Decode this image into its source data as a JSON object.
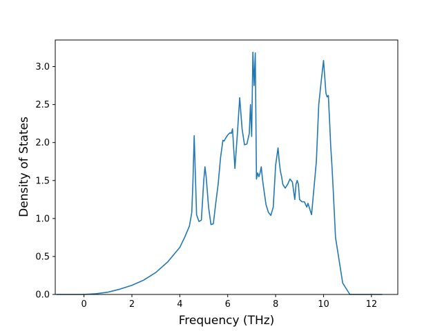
{
  "chart_data": {
    "type": "line",
    "title": "",
    "xlabel": "Frequency (THz)",
    "ylabel": "Density of States",
    "xlim": [
      -1.2,
      13.1
    ],
    "ylim": [
      0.0,
      3.35
    ],
    "grid": false,
    "xticks": [
      "0",
      "2",
      "4",
      "6",
      "8",
      "10",
      "12"
    ],
    "yticks": [
      "0.0",
      "0.5",
      "1.0",
      "1.5",
      "2.0",
      "2.5",
      "3.0"
    ],
    "line_color": "#1f77b4",
    "series": [
      {
        "x": [
          -1.15,
          -0.5,
          0.0,
          0.5,
          1.0,
          1.5,
          2.0,
          2.5,
          3.0,
          3.5,
          4.0,
          4.2,
          4.4,
          4.5,
          4.55,
          4.6,
          4.7,
          4.8,
          4.9,
          5.0,
          5.05,
          5.1,
          5.2,
          5.3,
          5.4,
          5.5,
          5.6,
          5.7,
          5.8,
          5.85,
          5.9,
          6.0,
          6.1,
          6.15,
          6.2,
          6.3,
          6.4,
          6.5,
          6.6,
          6.7,
          6.8,
          6.9,
          6.95,
          7.0,
          7.05,
          7.1,
          7.15,
          7.2,
          7.25,
          7.3,
          7.35,
          7.4,
          7.45,
          7.5,
          7.6,
          7.7,
          7.8,
          7.9,
          8.0,
          8.1,
          8.15,
          8.2,
          8.25,
          8.3,
          8.4,
          8.5,
          8.6,
          8.7,
          8.8,
          8.85,
          8.9,
          8.95,
          9.0,
          9.1,
          9.2,
          9.3,
          9.35,
          9.4,
          9.5,
          9.6,
          9.7,
          9.8,
          9.9,
          10.0,
          10.1,
          10.15,
          10.2,
          10.25,
          10.3,
          10.35,
          10.4,
          10.5,
          10.6,
          10.7,
          10.8,
          10.9,
          11.0,
          11.1,
          11.2,
          11.3,
          11.5,
          12.0,
          12.45
        ],
        "y": [
          0.0,
          0.0,
          0.0,
          0.01,
          0.03,
          0.07,
          0.12,
          0.19,
          0.29,
          0.43,
          0.62,
          0.75,
          0.9,
          1.08,
          1.5,
          2.09,
          1.05,
          0.96,
          0.98,
          1.5,
          1.68,
          1.55,
          1.15,
          0.92,
          0.93,
          1.2,
          1.45,
          1.8,
          2.03,
          2.02,
          2.05,
          2.1,
          2.13,
          2.12,
          2.18,
          1.66,
          2.1,
          2.59,
          2.18,
          1.97,
          1.98,
          2.12,
          2.5,
          2.08,
          3.19,
          2.75,
          3.18,
          1.52,
          1.6,
          1.55,
          1.6,
          1.68,
          1.52,
          1.4,
          1.18,
          1.08,
          1.04,
          1.15,
          1.7,
          1.93,
          1.75,
          1.62,
          1.55,
          1.45,
          1.4,
          1.45,
          1.52,
          1.48,
          1.25,
          1.45,
          1.5,
          1.45,
          1.25,
          1.22,
          1.22,
          1.15,
          1.2,
          1.15,
          1.05,
          1.4,
          1.75,
          2.5,
          2.8,
          3.08,
          2.65,
          2.6,
          2.62,
          2.3,
          1.95,
          1.7,
          1.4,
          0.75,
          0.55,
          0.35,
          0.15,
          0.1,
          0.05,
          0.0,
          0.0,
          0.0,
          0.0,
          0.0,
          0.0
        ]
      }
    ]
  }
}
